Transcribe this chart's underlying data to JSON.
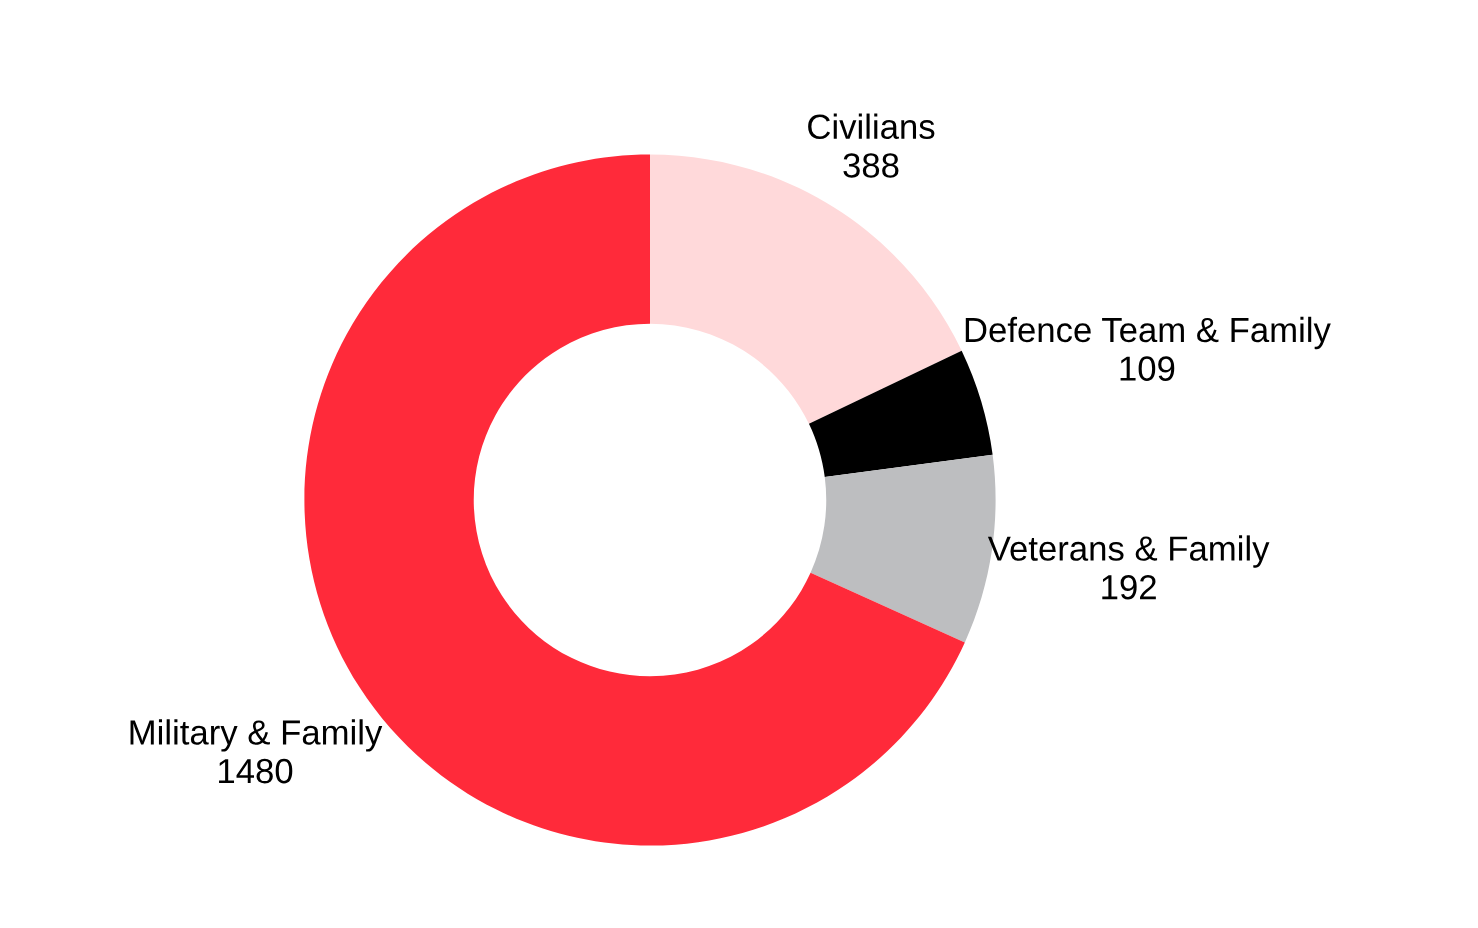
{
  "chart_data": {
    "type": "donut",
    "categories": [
      "Civilians",
      "Defence Team & Family",
      "Veterans & Family",
      "Military & Family"
    ],
    "values": [
      388,
      109,
      192,
      1480
    ],
    "colors": [
      "#ffd9da",
      "#000000",
      "#bdbec0",
      "#ff2a3a"
    ],
    "data_labels": true
  }
}
